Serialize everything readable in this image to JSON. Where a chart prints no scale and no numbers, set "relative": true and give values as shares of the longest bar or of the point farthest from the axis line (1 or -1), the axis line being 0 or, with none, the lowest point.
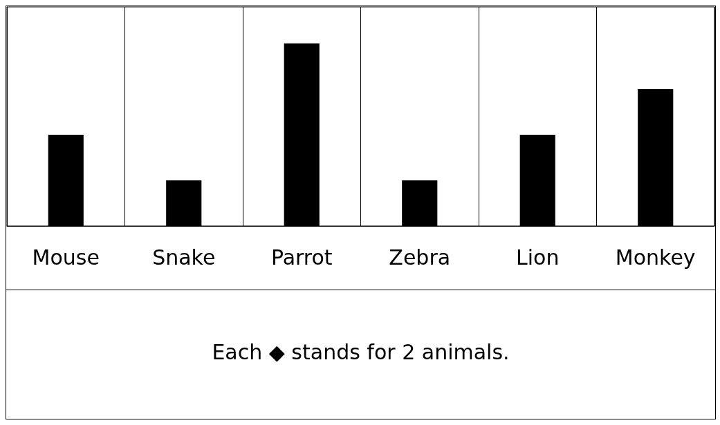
{
  "chart_data": {
    "type": "bar",
    "relative": true,
    "categories": [
      "Mouse",
      "Snake",
      "Parrot",
      "Zebra",
      "Lion",
      "Monkey"
    ],
    "values": [
      0.5,
      0.25,
      1,
      0.25,
      0.5,
      0.75
    ],
    "color": "#000000",
    "grid": "x",
    "annotations": [
      "Each ◆ stands for 2 animals."
    ]
  }
}
